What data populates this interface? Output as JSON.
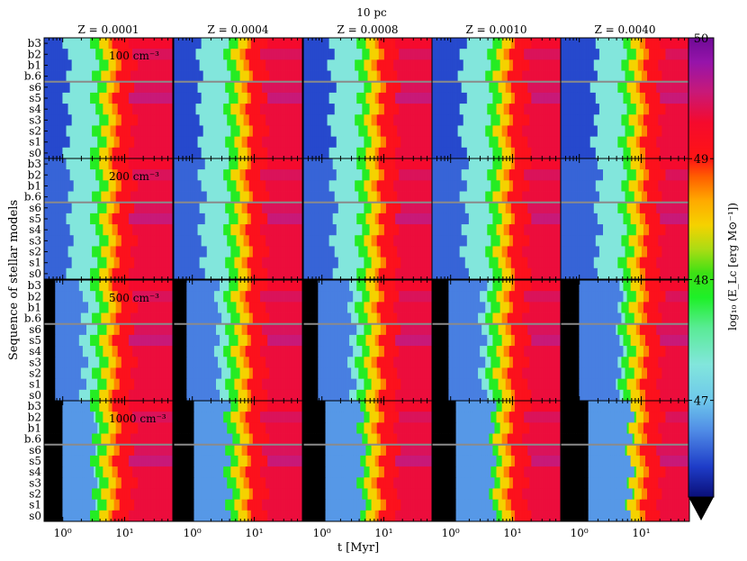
{
  "chart_data": {
    "type": "heatmap",
    "title": "10 pc",
    "metallicities": [
      "Z = 0.0001",
      "Z = 0.0004",
      "Z = 0.0008",
      "Z = 0.0010",
      "Z = 0.0040"
    ],
    "densities": [
      "100 cm⁻³",
      "200 cm⁻³",
      "500 cm⁻³",
      "1000 cm⁻³"
    ],
    "models_top_to_bottom": [
      "b3",
      "b2",
      "b1",
      "b.6",
      "s6",
      "s5",
      "s4",
      "s3",
      "s2",
      "s1",
      "s0"
    ],
    "xlabel": "t [Myr]",
    "ylabel": "Sequence of stellar models",
    "x_scale": "log",
    "x_range_myr": [
      0.5,
      60
    ],
    "x_ticks": [
      {
        "value": 1,
        "label": "10⁰"
      },
      {
        "value": 10,
        "label": "10¹"
      }
    ],
    "colorbar": {
      "label": "log₁₀ (E_Lc [erg M⊙⁻¹])",
      "range": [
        46.2,
        50
      ],
      "ticks": [
        {
          "value": 47,
          "label": "47"
        },
        {
          "value": 48,
          "label": "48"
        },
        {
          "value": 49,
          "label": "49"
        },
        {
          "value": 50,
          "label": "50"
        }
      ],
      "extend_below": "black"
    },
    "value_below_range": 45.0,
    "approx_profile": {
      "description": "Each row rises from black (below range) to cyan, green, yellow/orange, then red; tail values shown in data units",
      "black_until_myr": [
        0.0,
        0.0,
        0.75,
        1.0
      ],
      "metallicity_shift": [
        0.0,
        0.04,
        0.08,
        0.1,
        0.18
      ],
      "tail_value": 49.35,
      "peak_rows": {
        "s5": 49.55,
        "s6": 49.45,
        "b2": 49.45,
        "b3": 49.3
      }
    }
  }
}
